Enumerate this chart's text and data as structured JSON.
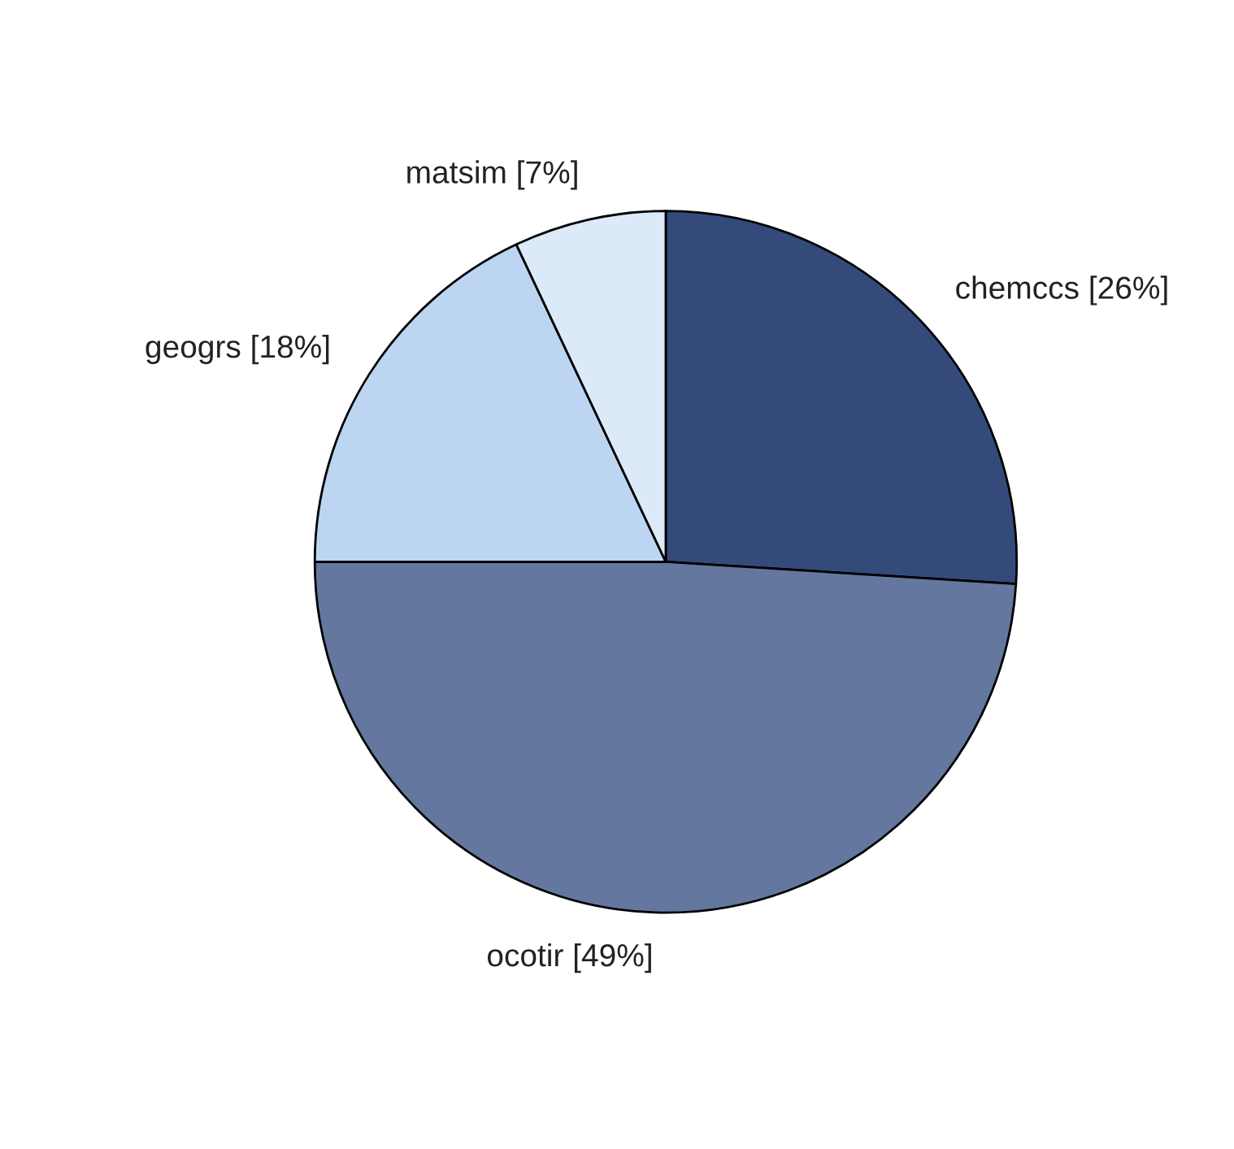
{
  "chart_data": {
    "type": "pie",
    "categories": [
      "chemccs [26%]",
      "ocotir [49%]",
      "geogrs [18%]",
      "matsim [7%]"
    ],
    "values": [
      26,
      49,
      18,
      7
    ],
    "colors": [
      "#344a7a",
      "#64779f",
      "#bcd6f2",
      "#dce9f9"
    ]
  }
}
